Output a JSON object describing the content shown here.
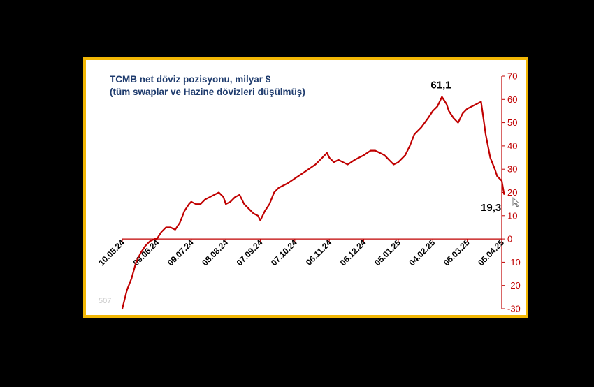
{
  "chart_data": {
    "type": "line",
    "title": "TCMB net döviz pozisyonu,  milyar $",
    "subtitle": "(tüm swaplar ve Hazine dövizleri düşülmüş)",
    "xlabel": "",
    "ylabel": "",
    "ylim": [
      -30,
      70
    ],
    "yticks": [
      70,
      60,
      50,
      40,
      30,
      20,
      10,
      0,
      -10,
      -20,
      -30
    ],
    "x_tick_labels": [
      "10.05.24",
      "09.06.24",
      "09.07.24",
      "08.08.24",
      "07.09.24",
      "07.10.24",
      "06.11.24",
      "06.12.24",
      "05.01.25",
      "04.02.25",
      "06.03.25",
      "05.04.25"
    ],
    "y_axis_position": "right",
    "grid": false,
    "legend": "none",
    "colors": {
      "line": "#c00000",
      "axis": "#c00000",
      "title": "#1f3c6e",
      "frame": "#f2b705"
    },
    "series": [
      {
        "x": [
          "10.05.24",
          "14.05.24",
          "18.05.24",
          "22.05.24",
          "26.05.24",
          "30.05.24",
          "03.06.24",
          "07.06.24",
          "09.06.24",
          "13.06.24",
          "17.06.24",
          "21.06.24",
          "25.06.24",
          "29.06.24",
          "03.07.24",
          "07.07.24",
          "09.07.24",
          "13.07.24",
          "17.07.24",
          "21.07.24",
          "25.07.24",
          "29.07.24",
          "02.08.24",
          "06.08.24",
          "08.08.24",
          "12.08.24",
          "16.08.24",
          "20.08.24",
          "24.08.24",
          "28.08.24",
          "01.09.24",
          "05.09.24",
          "07.09.24",
          "11.09.24",
          "15.09.24",
          "19.09.24",
          "23.09.24",
          "27.09.24",
          "01.10.24",
          "07.10.24",
          "13.10.24",
          "19.10.24",
          "25.10.24",
          "31.10.24",
          "04.11.24",
          "06.11.24",
          "10.11.24",
          "14.11.24",
          "18.11.24",
          "22.11.24",
          "28.11.24",
          "06.12.24",
          "12.12.24",
          "16.12.24",
          "20.12.24",
          "24.12.24",
          "28.12.24",
          "01.01.25",
          "05.01.25",
          "11.01.25",
          "15.01.25",
          "19.01.25",
          "25.01.25",
          "31.01.25",
          "04.02.25",
          "08.02.25",
          "12.02.25",
          "16.02.25",
          "18.02.25",
          "22.02.25",
          "26.02.25",
          "02.03.25",
          "06.03.25",
          "10.03.25",
          "14.03.25",
          "18.03.25",
          "20.03.25",
          "22.03.25",
          "26.03.25",
          "30.03.25",
          "01.04.25",
          "05.04.25",
          "07.04.25"
        ],
        "y": [
          -30,
          -22,
          -17,
          -10,
          -6,
          -3,
          -1,
          0,
          0,
          3,
          5,
          5,
          4,
          7,
          12,
          15,
          16,
          15,
          15,
          17,
          18,
          19,
          20,
          18,
          15,
          16,
          18,
          19,
          15,
          13,
          11,
          10,
          8,
          12,
          15,
          20,
          22,
          23,
          24,
          26,
          28,
          30,
          32,
          35,
          37,
          35,
          33,
          34,
          33,
          32,
          34,
          36,
          38,
          38,
          37,
          36,
          34,
          32,
          33,
          36,
          40,
          45,
          48,
          52,
          55,
          57,
          61.1,
          58,
          55,
          52,
          50,
          54,
          56,
          57,
          58,
          59,
          52,
          45,
          35,
          30,
          27,
          25,
          19.3
        ]
      }
    ],
    "annotations": [
      {
        "text": "61,1",
        "x": "16.02.25",
        "y": 61.1
      },
      {
        "text": "19,3",
        "x": "07.04.25",
        "y": 19.3
      }
    ],
    "watermark_text": "507"
  }
}
